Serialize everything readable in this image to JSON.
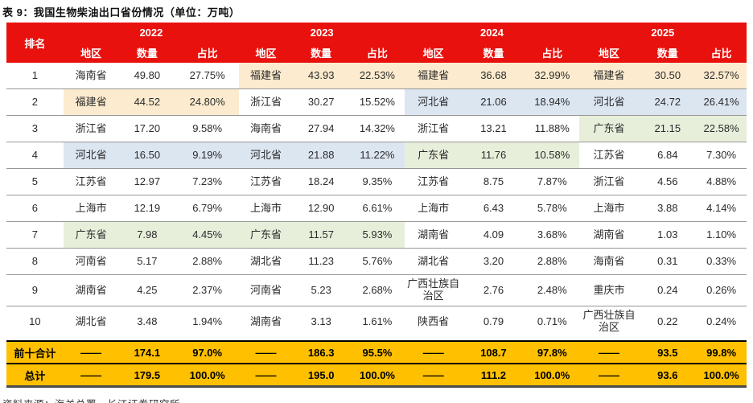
{
  "title": "表 9：我国生物柴油出口省份情况（单位：万吨）",
  "source": "资料来源：海关总署，长江证券研究所",
  "colors": {
    "header_red": "#E8110D",
    "total_amber": "#FFC000",
    "row_line_gray": "#979797"
  },
  "highlights": {
    "yellow": "#FCEBCE",
    "blue": "#DCE6F1",
    "green": "#E7EFDB"
  },
  "header": {
    "rank": "排名",
    "years": [
      "2022",
      "2023",
      "2024",
      "2025"
    ],
    "subcols": [
      "地区",
      "数量",
      "占比"
    ]
  },
  "table": {
    "rows": [
      {
        "rank": "1",
        "cells": [
          {
            "region": "海南省",
            "qty": "49.80",
            "pct": "27.75%",
            "hl": null
          },
          {
            "region": "福建省",
            "qty": "43.93",
            "pct": "22.53%",
            "hl": "yellow"
          },
          {
            "region": "福建省",
            "qty": "36.68",
            "pct": "32.99%",
            "hl": "yellow"
          },
          {
            "region": "福建省",
            "qty": "30.50",
            "pct": "32.57%",
            "hl": "yellow"
          }
        ]
      },
      {
        "rank": "2",
        "cells": [
          {
            "region": "福建省",
            "qty": "44.52",
            "pct": "24.80%",
            "hl": "yellow"
          },
          {
            "region": "浙江省",
            "qty": "30.27",
            "pct": "15.52%",
            "hl": null
          },
          {
            "region": "河北省",
            "qty": "21.06",
            "pct": "18.94%",
            "hl": "blue"
          },
          {
            "region": "河北省",
            "qty": "24.72",
            "pct": "26.41%",
            "hl": "blue"
          }
        ]
      },
      {
        "rank": "3",
        "cells": [
          {
            "region": "浙江省",
            "qty": "17.20",
            "pct": "9.58%",
            "hl": null
          },
          {
            "region": "海南省",
            "qty": "27.94",
            "pct": "14.32%",
            "hl": null
          },
          {
            "region": "浙江省",
            "qty": "13.21",
            "pct": "11.88%",
            "hl": null
          },
          {
            "region": "广东省",
            "qty": "21.15",
            "pct": "22.58%",
            "hl": "green"
          }
        ]
      },
      {
        "rank": "4",
        "cells": [
          {
            "region": "河北省",
            "qty": "16.50",
            "pct": "9.19%",
            "hl": "blue"
          },
          {
            "region": "河北省",
            "qty": "21.88",
            "pct": "11.22%",
            "hl": "blue"
          },
          {
            "region": "广东省",
            "qty": "11.76",
            "pct": "10.58%",
            "hl": "green"
          },
          {
            "region": "江苏省",
            "qty": "6.84",
            "pct": "7.30%",
            "hl": null
          }
        ]
      },
      {
        "rank": "5",
        "cells": [
          {
            "region": "江苏省",
            "qty": "12.97",
            "pct": "7.23%",
            "hl": null
          },
          {
            "region": "江苏省",
            "qty": "18.24",
            "pct": "9.35%",
            "hl": null
          },
          {
            "region": "江苏省",
            "qty": "8.75",
            "pct": "7.87%",
            "hl": null
          },
          {
            "region": "浙江省",
            "qty": "4.56",
            "pct": "4.88%",
            "hl": null
          }
        ]
      },
      {
        "rank": "6",
        "cells": [
          {
            "region": "上海市",
            "qty": "12.19",
            "pct": "6.79%",
            "hl": null
          },
          {
            "region": "上海市",
            "qty": "12.90",
            "pct": "6.61%",
            "hl": null
          },
          {
            "region": "上海市",
            "qty": "6.43",
            "pct": "5.78%",
            "hl": null
          },
          {
            "region": "上海市",
            "qty": "3.88",
            "pct": "4.14%",
            "hl": null
          }
        ]
      },
      {
        "rank": "7",
        "cells": [
          {
            "region": "广东省",
            "qty": "7.98",
            "pct": "4.45%",
            "hl": "green"
          },
          {
            "region": "广东省",
            "qty": "11.57",
            "pct": "5.93%",
            "hl": "green"
          },
          {
            "region": "湖南省",
            "qty": "4.09",
            "pct": "3.68%",
            "hl": null
          },
          {
            "region": "湖南省",
            "qty": "1.03",
            "pct": "1.10%",
            "hl": null
          }
        ]
      },
      {
        "rank": "8",
        "cells": [
          {
            "region": "河南省",
            "qty": "5.17",
            "pct": "2.88%",
            "hl": null
          },
          {
            "region": "湖北省",
            "qty": "11.23",
            "pct": "5.76%",
            "hl": null
          },
          {
            "region": "湖北省",
            "qty": "3.20",
            "pct": "2.88%",
            "hl": null
          },
          {
            "region": "海南省",
            "qty": "0.31",
            "pct": "0.33%",
            "hl": null
          }
        ]
      },
      {
        "rank": "9",
        "cells": [
          {
            "region": "湖南省",
            "qty": "4.25",
            "pct": "2.37%",
            "hl": null
          },
          {
            "region": "河南省",
            "qty": "5.23",
            "pct": "2.68%",
            "hl": null
          },
          {
            "region": "广西壮族自治区",
            "qty": "2.76",
            "pct": "2.48%",
            "hl": null
          },
          {
            "region": "重庆市",
            "qty": "0.24",
            "pct": "0.26%",
            "hl": null
          }
        ]
      },
      {
        "rank": "10",
        "cells": [
          {
            "region": "湖北省",
            "qty": "3.48",
            "pct": "1.94%",
            "hl": null
          },
          {
            "region": "湖南省",
            "qty": "3.13",
            "pct": "1.61%",
            "hl": null
          },
          {
            "region": "陕西省",
            "qty": "0.79",
            "pct": "0.71%",
            "hl": null
          },
          {
            "region": "广西壮族自治区",
            "qty": "0.22",
            "pct": "0.24%",
            "hl": null
          }
        ]
      }
    ],
    "totals": [
      {
        "label": "前十合计",
        "cells": [
          {
            "region": "——",
            "qty": "174.1",
            "pct": "97.0%"
          },
          {
            "region": "——",
            "qty": "186.3",
            "pct": "95.5%"
          },
          {
            "region": "——",
            "qty": "108.7",
            "pct": "97.8%"
          },
          {
            "region": "——",
            "qty": "93.5",
            "pct": "99.8%"
          }
        ]
      },
      {
        "label": "总计",
        "cells": [
          {
            "region": "——",
            "qty": "179.5",
            "pct": "100.0%"
          },
          {
            "region": "——",
            "qty": "195.0",
            "pct": "100.0%"
          },
          {
            "region": "——",
            "qty": "111.2",
            "pct": "100.0%"
          },
          {
            "region": "——",
            "qty": "93.6",
            "pct": "100.0%"
          }
        ]
      }
    ]
  }
}
